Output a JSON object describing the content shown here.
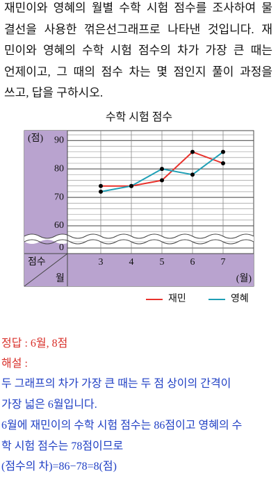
{
  "question": {
    "lines": [
      "재민이와 영혜의 월별 수학 시험 점수를 조사하여 물",
      "결선을 사용한 꺾은선그래프로 나타낸 것입니다. 재",
      "민이와 영혜의 수학 시험 점수의 차가 가장 큰 때는",
      "언제이고, 그 때의 점수 차는 몇 점인지 풀이 과정을",
      "쓰고, 답을 구하시오."
    ]
  },
  "chart_data": {
    "type": "line",
    "title": "수학 시험 점수",
    "y_unit": "(점)",
    "x_unit": "(월)",
    "corner": {
      "value": "점수",
      "category": "월"
    },
    "categories": [
      "3",
      "4",
      "5",
      "6",
      "7"
    ],
    "series": [
      {
        "name": "재민",
        "color": "#e8322c",
        "values": [
          74,
          74,
          76,
          86,
          82
        ]
      },
      {
        "name": "영혜",
        "color": "#1e9fb5",
        "values": [
          72,
          74,
          80,
          78,
          86
        ]
      }
    ],
    "ylim": [
      0,
      93
    ],
    "yticks": [
      0,
      60,
      70,
      80,
      90
    ],
    "grid": true,
    "axis_break": true,
    "legend": "bottom-right"
  },
  "answer": {
    "answer": "정답 : 6월, 8점",
    "explanation_label": "해설 :",
    "explanation_lines": [
      "두 그래프의 차가 가장 큰 때는 두 점 상이의 간격이",
      "가장 넓은 6월입니다.",
      "6월에 재민이의 수학 시험 점수는 86점이고 영혜의 수",
      "학 시험 점수는 78점이므로",
      "(점수의 차)=86−78=8(점)"
    ]
  }
}
